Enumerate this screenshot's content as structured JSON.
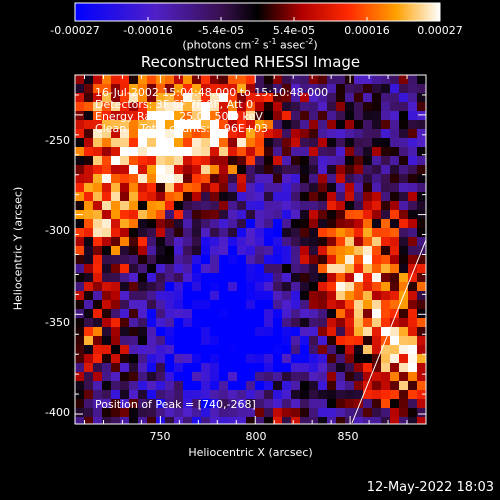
{
  "colorbar": {
    "ticks": [
      "-0.00027",
      "-0.00016",
      "-5.4e-05",
      "5.4e-05",
      "0.00016",
      "0.00027"
    ],
    "units_prefix": "(photons cm",
    "units_exp1": "-2",
    "units_mid1": " s",
    "units_exp2": "-1",
    "units_mid2": " asec",
    "units_exp3": "-2",
    "units_suffix": ")"
  },
  "title": "Reconstructed RHESSI Image",
  "info": {
    "line1": "16-Jul-2002 15:04:48.000 to 15:10:48.000",
    "line2": "Detectors: 3F 6F 7F 8F, Att 0",
    "line3": "Energy Range: 25.0 - 50.0 keV",
    "line4_a": "Clean",
    "line4_b": "Total counts: 4.96E+03",
    "peak": "Position of Peak = [740,-268]"
  },
  "axes": {
    "xlabel": "Heliocentric X (arcsec)",
    "ylabel": "Heliocentric Y (arcsec)",
    "xticks": [
      "750",
      "800",
      "850"
    ],
    "yticks": [
      "-250",
      "-300",
      "-350",
      "-400"
    ]
  },
  "footer": {
    "timestamp": "12-May-2022 18:03"
  },
  "chart_data": {
    "type": "heatmap",
    "title": "Reconstructed RHESSI Image",
    "xlabel": "Heliocentric X (arcsec)",
    "ylabel": "Heliocentric Y (arcsec)",
    "xlim": [
      705,
      890
    ],
    "ylim": [
      -405,
      -230
    ],
    "colorscale_range": [
      -0.00027,
      0.00027
    ],
    "peak": [
      740,
      -268
    ]
  }
}
